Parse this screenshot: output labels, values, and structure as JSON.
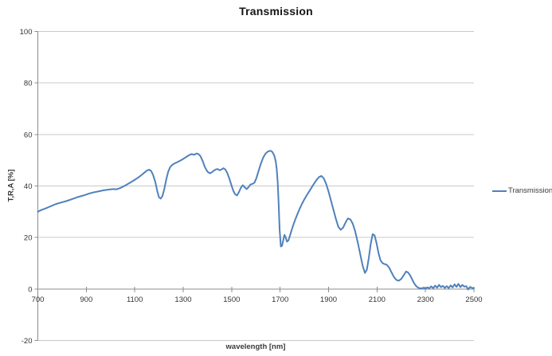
{
  "chart_data": {
    "type": "line",
    "title": "Transmission",
    "xlabel": "wavelength [nm]",
    "ylabel": "T,R,A [%]",
    "legend": [
      "Transmission"
    ],
    "legend_position": "right",
    "xlim": [
      700,
      2500
    ],
    "ylim": [
      -20,
      100
    ],
    "x_ticks": [
      700,
      900,
      1100,
      1300,
      1500,
      1700,
      1900,
      2100,
      2300,
      2500
    ],
    "y_ticks": [
      -20,
      0,
      20,
      40,
      60,
      80,
      100
    ],
    "grid": "horizontal",
    "colors": {
      "series": "#4F81BD",
      "gridline": "#C9C9C9",
      "axis": "#8C8C8C",
      "tick_text": "#333333",
      "background": "#FFFFFF"
    },
    "series": [
      {
        "name": "Transmission",
        "points": [
          [
            700,
            30.0
          ],
          [
            715,
            30.7
          ],
          [
            730,
            31.2
          ],
          [
            745,
            31.8
          ],
          [
            760,
            32.4
          ],
          [
            775,
            33.0
          ],
          [
            790,
            33.4
          ],
          [
            805,
            33.8
          ],
          [
            820,
            34.2
          ],
          [
            835,
            34.7
          ],
          [
            850,
            35.2
          ],
          [
            865,
            35.7
          ],
          [
            880,
            36.1
          ],
          [
            895,
            36.5
          ],
          [
            910,
            37.0
          ],
          [
            925,
            37.4
          ],
          [
            940,
            37.7
          ],
          [
            955,
            38.0
          ],
          [
            970,
            38.3
          ],
          [
            985,
            38.5
          ],
          [
            1000,
            38.7
          ],
          [
            1012,
            38.8
          ],
          [
            1025,
            38.7
          ],
          [
            1040,
            39.2
          ],
          [
            1055,
            39.9
          ],
          [
            1070,
            40.7
          ],
          [
            1085,
            41.5
          ],
          [
            1100,
            42.4
          ],
          [
            1115,
            43.3
          ],
          [
            1130,
            44.4
          ],
          [
            1140,
            45.2
          ],
          [
            1150,
            46.0
          ],
          [
            1160,
            46.3
          ],
          [
            1168,
            45.8
          ],
          [
            1176,
            44.2
          ],
          [
            1185,
            41.5
          ],
          [
            1193,
            38.0
          ],
          [
            1200,
            35.6
          ],
          [
            1207,
            35.1
          ],
          [
            1214,
            36.0
          ],
          [
            1222,
            38.8
          ],
          [
            1230,
            42.5
          ],
          [
            1238,
            45.5
          ],
          [
            1246,
            47.3
          ],
          [
            1255,
            48.2
          ],
          [
            1265,
            48.8
          ],
          [
            1275,
            49.2
          ],
          [
            1285,
            49.7
          ],
          [
            1295,
            50.2
          ],
          [
            1305,
            50.8
          ],
          [
            1315,
            51.4
          ],
          [
            1325,
            52.0
          ],
          [
            1335,
            52.4
          ],
          [
            1345,
            52.1
          ],
          [
            1355,
            52.6
          ],
          [
            1363,
            52.4
          ],
          [
            1371,
            51.6
          ],
          [
            1380,
            49.8
          ],
          [
            1390,
            47.2
          ],
          [
            1400,
            45.6
          ],
          [
            1410,
            44.9
          ],
          [
            1418,
            45.3
          ],
          [
            1426,
            45.9
          ],
          [
            1434,
            46.4
          ],
          [
            1442,
            46.6
          ],
          [
            1450,
            46.1
          ],
          [
            1458,
            46.4
          ],
          [
            1466,
            46.9
          ],
          [
            1474,
            46.4
          ],
          [
            1482,
            45.0
          ],
          [
            1490,
            43.0
          ],
          [
            1498,
            40.6
          ],
          [
            1506,
            38.3
          ],
          [
            1514,
            36.8
          ],
          [
            1522,
            36.3
          ],
          [
            1530,
            37.6
          ],
          [
            1538,
            39.3
          ],
          [
            1546,
            40.3
          ],
          [
            1554,
            39.5
          ],
          [
            1562,
            38.8
          ],
          [
            1570,
            39.6
          ],
          [
            1578,
            40.6
          ],
          [
            1586,
            40.8
          ],
          [
            1594,
            41.3
          ],
          [
            1602,
            43.0
          ],
          [
            1610,
            45.5
          ],
          [
            1620,
            48.5
          ],
          [
            1630,
            51.0
          ],
          [
            1640,
            52.6
          ],
          [
            1650,
            53.4
          ],
          [
            1660,
            53.7
          ],
          [
            1668,
            53.2
          ],
          [
            1676,
            51.8
          ],
          [
            1682,
            49.5
          ],
          [
            1686,
            46.5
          ],
          [
            1690,
            41.5
          ],
          [
            1694,
            33.0
          ],
          [
            1698,
            23.0
          ],
          [
            1703,
            16.5
          ],
          [
            1708,
            16.8
          ],
          [
            1713,
            19.0
          ],
          [
            1718,
            21.0
          ],
          [
            1723,
            20.0
          ],
          [
            1728,
            18.4
          ],
          [
            1734,
            18.8
          ],
          [
            1740,
            20.5
          ],
          [
            1748,
            23.0
          ],
          [
            1756,
            25.3
          ],
          [
            1764,
            27.3
          ],
          [
            1772,
            29.2
          ],
          [
            1780,
            31.0
          ],
          [
            1790,
            33.0
          ],
          [
            1800,
            34.8
          ],
          [
            1810,
            36.4
          ],
          [
            1820,
            37.9
          ],
          [
            1830,
            39.4
          ],
          [
            1840,
            40.9
          ],
          [
            1850,
            42.3
          ],
          [
            1860,
            43.4
          ],
          [
            1870,
            43.9
          ],
          [
            1880,
            43.0
          ],
          [
            1890,
            40.8
          ],
          [
            1900,
            37.8
          ],
          [
            1910,
            34.3
          ],
          [
            1920,
            30.8
          ],
          [
            1930,
            27.3
          ],
          [
            1940,
            24.2
          ],
          [
            1950,
            23.0
          ],
          [
            1960,
            23.8
          ],
          [
            1970,
            25.8
          ],
          [
            1980,
            27.4
          ],
          [
            1990,
            27.0
          ],
          [
            2000,
            25.3
          ],
          [
            2010,
            22.3
          ],
          [
            2020,
            18.3
          ],
          [
            2030,
            13.8
          ],
          [
            2040,
            9.3
          ],
          [
            2050,
            6.2
          ],
          [
            2058,
            7.5
          ],
          [
            2066,
            12.0
          ],
          [
            2074,
            17.5
          ],
          [
            2082,
            21.3
          ],
          [
            2090,
            20.8
          ],
          [
            2098,
            17.8
          ],
          [
            2106,
            14.0
          ],
          [
            2114,
            11.2
          ],
          [
            2122,
            10.1
          ],
          [
            2130,
            9.7
          ],
          [
            2140,
            9.4
          ],
          [
            2150,
            8.3
          ],
          [
            2160,
            6.4
          ],
          [
            2170,
            4.6
          ],
          [
            2180,
            3.5
          ],
          [
            2190,
            3.2
          ],
          [
            2200,
            3.9
          ],
          [
            2210,
            5.3
          ],
          [
            2220,
            6.8
          ],
          [
            2228,
            6.4
          ],
          [
            2236,
            5.4
          ],
          [
            2244,
            3.9
          ],
          [
            2252,
            2.4
          ],
          [
            2260,
            1.3
          ],
          [
            2268,
            0.6
          ],
          [
            2276,
            0.3
          ],
          [
            2284,
            0.2
          ],
          [
            2292,
            0.5
          ],
          [
            2300,
            0.2
          ],
          [
            2308,
            0.6
          ],
          [
            2316,
            0.3
          ],
          [
            2324,
            1.0
          ],
          [
            2332,
            0.3
          ],
          [
            2340,
            1.3
          ],
          [
            2348,
            0.5
          ],
          [
            2356,
            1.6
          ],
          [
            2364,
            0.7
          ],
          [
            2372,
            1.2
          ],
          [
            2380,
            0.4
          ],
          [
            2388,
            1.1
          ],
          [
            2396,
            0.3
          ],
          [
            2404,
            1.4
          ],
          [
            2412,
            0.6
          ],
          [
            2420,
            1.8
          ],
          [
            2428,
            0.8
          ],
          [
            2436,
            2.0
          ],
          [
            2444,
            0.7
          ],
          [
            2452,
            1.6
          ],
          [
            2460,
            0.9
          ],
          [
            2468,
            1.1
          ],
          [
            2476,
            -0.2
          ],
          [
            2484,
            0.8
          ],
          [
            2492,
            0.4
          ],
          [
            2500,
            0.3
          ]
        ]
      }
    ]
  }
}
